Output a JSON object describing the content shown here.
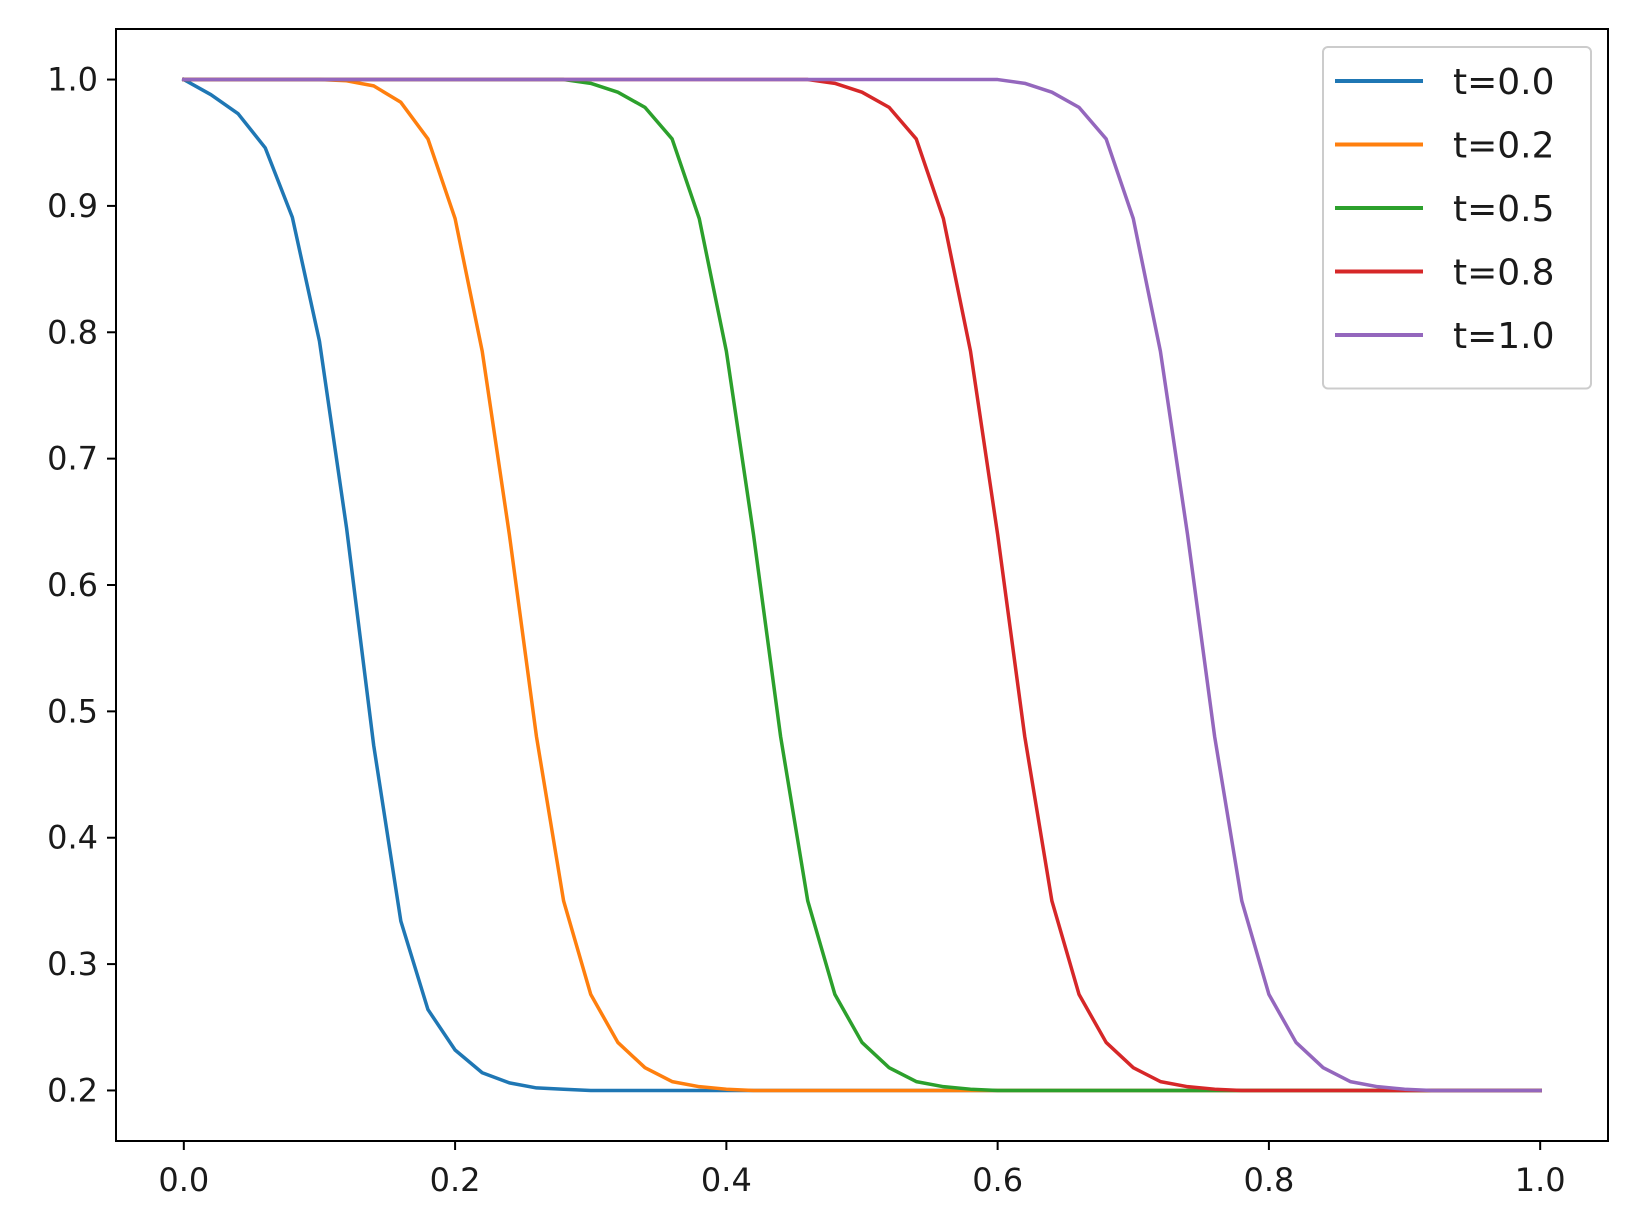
{
  "chart_data": {
    "type": "line",
    "title": "",
    "xlabel": "",
    "ylabel": "",
    "xlim": [
      -0.05,
      1.05
    ],
    "ylim": [
      0.16,
      1.04
    ],
    "grid": false,
    "legend_position": "top-right",
    "x_ticks": [
      {
        "value": 0.0,
        "label": "0.0"
      },
      {
        "value": 0.2,
        "label": "0.2"
      },
      {
        "value": 0.4,
        "label": "0.4"
      },
      {
        "value": 0.6,
        "label": "0.6"
      },
      {
        "value": 0.8,
        "label": "0.8"
      },
      {
        "value": 1.0,
        "label": "1.0"
      }
    ],
    "y_ticks": [
      {
        "value": 0.2,
        "label": "0.2"
      },
      {
        "value": 0.3,
        "label": "0.3"
      },
      {
        "value": 0.4,
        "label": "0.4"
      },
      {
        "value": 0.5,
        "label": "0.5"
      },
      {
        "value": 0.6,
        "label": "0.6"
      },
      {
        "value": 0.7,
        "label": "0.7"
      },
      {
        "value": 0.8,
        "label": "0.8"
      },
      {
        "value": 0.9,
        "label": "0.9"
      },
      {
        "value": 1.0,
        "label": "1.0"
      }
    ],
    "x": [
      0.0,
      0.02,
      0.04,
      0.06,
      0.08,
      0.1,
      0.12,
      0.14,
      0.16,
      0.18,
      0.2,
      0.22,
      0.24,
      0.26,
      0.28,
      0.3,
      0.32,
      0.34,
      0.36,
      0.38,
      0.4,
      0.42,
      0.44,
      0.46,
      0.48,
      0.5,
      0.52,
      0.54,
      0.56,
      0.58,
      0.6,
      0.62,
      0.64,
      0.66,
      0.68,
      0.7,
      0.72,
      0.74,
      0.76,
      0.78,
      0.8,
      0.82,
      0.84,
      0.86,
      0.88,
      0.9,
      0.92,
      0.94,
      0.96,
      0.98,
      1.0
    ],
    "series": [
      {
        "name": "t=0.0",
        "color": "#1f77b4",
        "values": [
          1.0,
          0.988,
          0.973,
          0.946,
          0.891,
          0.793,
          0.645,
          0.473,
          0.334,
          0.264,
          0.232,
          0.214,
          0.206,
          0.202,
          0.201,
          0.2,
          0.2,
          0.2,
          0.2,
          0.2,
          0.2,
          0.2,
          0.2,
          0.2,
          0.2,
          0.2,
          0.2,
          0.2,
          0.2,
          0.2,
          0.2,
          0.2,
          0.2,
          0.2,
          0.2,
          0.2,
          0.2,
          0.2,
          0.2,
          0.2,
          0.2,
          0.2,
          0.2,
          0.2,
          0.2,
          0.2,
          0.2,
          0.2,
          0.2,
          0.2,
          0.2
        ]
      },
      {
        "name": "t=0.2",
        "color": "#ff7f0e",
        "values": [
          1.0,
          1.0,
          1.0,
          1.0,
          1.0,
          1.0,
          0.999,
          0.995,
          0.982,
          0.953,
          0.89,
          0.785,
          0.64,
          0.48,
          0.35,
          0.276,
          0.238,
          0.218,
          0.207,
          0.203,
          0.201,
          0.2,
          0.2,
          0.2,
          0.2,
          0.2,
          0.2,
          0.2,
          0.2,
          0.2,
          0.2,
          0.2,
          0.2,
          0.2,
          0.2,
          0.2,
          0.2,
          0.2,
          0.2,
          0.2,
          0.2,
          0.2,
          0.2,
          0.2,
          0.2,
          0.2,
          0.2,
          0.2,
          0.2,
          0.2,
          0.2
        ]
      },
      {
        "name": "t=0.5",
        "color": "#2ca02c",
        "values": [
          1.0,
          1.0,
          1.0,
          1.0,
          1.0,
          1.0,
          1.0,
          1.0,
          1.0,
          1.0,
          1.0,
          1.0,
          1.0,
          1.0,
          1.0,
          0.997,
          0.99,
          0.978,
          0.953,
          0.89,
          0.785,
          0.64,
          0.48,
          0.35,
          0.276,
          0.238,
          0.218,
          0.207,
          0.203,
          0.201,
          0.2,
          0.2,
          0.2,
          0.2,
          0.2,
          0.2,
          0.2,
          0.2,
          0.2,
          0.2,
          0.2,
          0.2,
          0.2,
          0.2,
          0.2,
          0.2,
          0.2,
          0.2,
          0.2,
          0.2,
          0.2
        ]
      },
      {
        "name": "t=0.8",
        "color": "#d62728",
        "values": [
          1.0,
          1.0,
          1.0,
          1.0,
          1.0,
          1.0,
          1.0,
          1.0,
          1.0,
          1.0,
          1.0,
          1.0,
          1.0,
          1.0,
          1.0,
          1.0,
          1.0,
          1.0,
          1.0,
          1.0,
          1.0,
          1.0,
          1.0,
          1.0,
          0.997,
          0.99,
          0.978,
          0.953,
          0.89,
          0.785,
          0.64,
          0.48,
          0.35,
          0.276,
          0.238,
          0.218,
          0.207,
          0.203,
          0.201,
          0.2,
          0.2,
          0.2,
          0.2,
          0.2,
          0.2,
          0.2,
          0.2,
          0.2,
          0.2,
          0.2,
          0.2
        ]
      },
      {
        "name": "t=1.0",
        "color": "#9467bd",
        "values": [
          1.0,
          1.0,
          1.0,
          1.0,
          1.0,
          1.0,
          1.0,
          1.0,
          1.0,
          1.0,
          1.0,
          1.0,
          1.0,
          1.0,
          1.0,
          1.0,
          1.0,
          1.0,
          1.0,
          1.0,
          1.0,
          1.0,
          1.0,
          1.0,
          1.0,
          1.0,
          1.0,
          1.0,
          1.0,
          1.0,
          1.0,
          0.997,
          0.99,
          0.978,
          0.953,
          0.89,
          0.785,
          0.64,
          0.48,
          0.35,
          0.276,
          0.238,
          0.218,
          0.207,
          0.203,
          0.201,
          0.2,
          0.2,
          0.2,
          0.2,
          0.2
        ]
      }
    ]
  }
}
